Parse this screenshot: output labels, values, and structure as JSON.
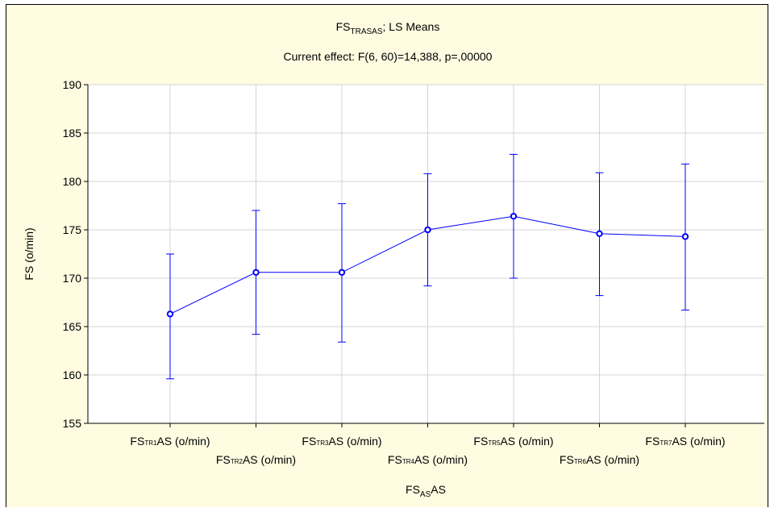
{
  "chart_data": {
    "type": "line",
    "title": {
      "main": "FS",
      "main_sub": "TRASAS",
      "main_rest": "; LS Means",
      "effect": "Current effect: F(6, 60)=14,388, p=,00000"
    },
    "ylabel": "FS (o/min)",
    "xlabel": {
      "main": "FS",
      "sub": "AS",
      "rest": "AS"
    },
    "ylim": [
      155,
      190
    ],
    "yticks": [
      155,
      160,
      165,
      170,
      175,
      180,
      185,
      190
    ],
    "grid": true,
    "categories": [
      {
        "base": "FS",
        "sub": "TR1",
        "rest": "AS (o/min)"
      },
      {
        "base": "FS",
        "sub": "TR2",
        "rest": "AS (o/min)"
      },
      {
        "base": "FS",
        "sub": "TR3",
        "rest": "AS (o/min)"
      },
      {
        "base": "FS",
        "sub": "TR4",
        "rest": "AS (o/min)"
      },
      {
        "base": "FS",
        "sub": "TR5",
        "rest": "AS (o/min)"
      },
      {
        "base": "FS",
        "sub": "TR6",
        "rest": "AS (o/min)"
      },
      {
        "base": "FS",
        "sub": "TR7",
        "rest": "AS (o/min)"
      }
    ],
    "series": [
      {
        "values": [
          166.3,
          170.6,
          170.6,
          175.0,
          176.4,
          174.6,
          174.3
        ],
        "lower": [
          159.6,
          164.2,
          163.4,
          169.2,
          170.0,
          168.2,
          166.7
        ],
        "upper": [
          172.5,
          177.0,
          177.7,
          180.8,
          182.8,
          180.9,
          181.8
        ],
        "color": "#0000ff"
      }
    ]
  }
}
